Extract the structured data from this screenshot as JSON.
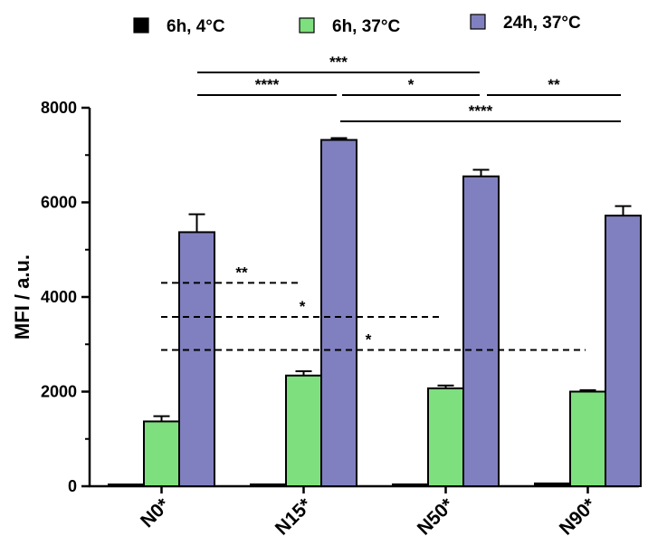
{
  "chart_data": {
    "type": "bar",
    "ylabel": "MFI / a.u.",
    "xlabel": "",
    "title": "",
    "ylim": [
      0,
      8000
    ],
    "yticks": [
      0,
      2000,
      4000,
      6000,
      8000
    ],
    "categories": [
      "N0*",
      "N15*",
      "N50*",
      "N90*"
    ],
    "legend_position": "top",
    "series": [
      {
        "name": "6h, 4°C",
        "color": "#000000",
        "values": [
          30,
          40,
          40,
          60
        ],
        "errors": [
          0,
          0,
          0,
          0
        ]
      },
      {
        "name": "6h, 37°C",
        "color": "#7ddf7d",
        "values": [
          1370,
          2340,
          2070,
          2000
        ],
        "errors": [
          110,
          90,
          60,
          30
        ]
      },
      {
        "name": "24h, 37°C",
        "color": "#8080c0",
        "values": [
          5370,
          7320,
          6550,
          5720
        ],
        "errors": [
          380,
          40,
          140,
          200
        ]
      }
    ],
    "significance_brackets": [
      {
        "label": "***",
        "from": "N15*",
        "to": "N50*"
      },
      {
        "label": "****",
        "from": "N15*",
        "to": "N50*"
      },
      {
        "label": "*",
        "from": "N15*",
        "to": "N50*"
      },
      {
        "label": "**",
        "from": "N50*",
        "to": "N90*"
      },
      {
        "label": "****",
        "from": "N15*",
        "to": "N90*"
      }
    ],
    "dashed_lines": [
      {
        "label": "**",
        "y": 4300
      },
      {
        "label": "*",
        "y": 3580
      },
      {
        "label": "*",
        "y": 2880
      }
    ]
  }
}
